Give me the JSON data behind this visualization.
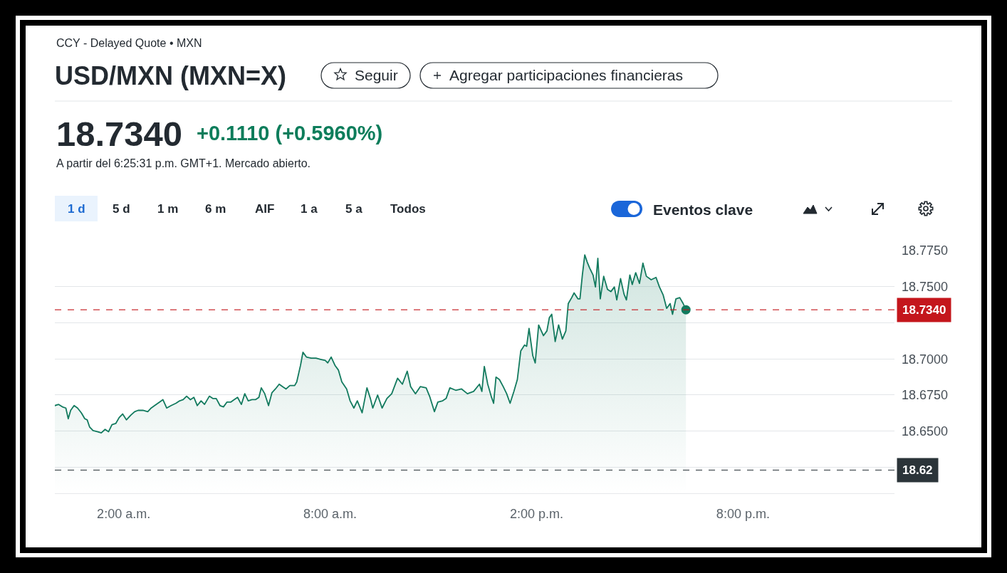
{
  "chart_data": {
    "type": "area",
    "title": "USD/MXN (MXN=X)",
    "subtitle": "CCY - Delayed Quote • MXN",
    "annotations": [
      "18.7340",
      "+0.1110 (+0.5960%)",
      "A partir del 6:25:31 p.m. GMT+1. Mercado abierto.",
      "Seguir",
      "Agregar participaciones financieras",
      "1 d",
      "5 d",
      "1 m",
      "6 m",
      "AIF",
      "1 a",
      "5 a",
      "Todos",
      "Eventos clave"
    ],
    "x": [
      0,
      0.11,
      0.22,
      0.32,
      0.39,
      0.46,
      0.56,
      0.66,
      0.77,
      0.87,
      0.94,
      1.01,
      1.11,
      1.25,
      1.35,
      1.46,
      1.56,
      1.66,
      1.77,
      1.87,
      1.97,
      2.08,
      2.21,
      2.32,
      2.42,
      2.56,
      2.7,
      2.8,
      2.9,
      3.04,
      3.14,
      3.25,
      3.38,
      3.52,
      3.63,
      3.73,
      3.83,
      3.94,
      4.04,
      4.14,
      4.25,
      4.35,
      4.49,
      4.59,
      4.69,
      4.8,
      4.9,
      5.0,
      5.11,
      5.21,
      5.31,
      5.42,
      5.52,
      5.62,
      5.73,
      5.83,
      5.93,
      6.0,
      6.1,
      6.21,
      6.31,
      6.41,
      6.52,
      6.62,
      6.72,
      6.83,
      6.97,
      7.03,
      7.14,
      7.21,
      7.31,
      7.45,
      7.59,
      7.72,
      7.86,
      7.93,
      8.03,
      8.14,
      8.24,
      8.34,
      8.48,
      8.58,
      8.69,
      8.79,
      8.93,
      9.07,
      9.17,
      9.24,
      9.38,
      9.51,
      9.65,
      9.79,
      9.96,
      10.1,
      10.24,
      10.34,
      10.48,
      10.62,
      10.79,
      10.89,
      11.03,
      11.13,
      11.27,
      11.37,
      11.48,
      11.65,
      11.82,
      11.99,
      12.17,
      12.34,
      12.41,
      12.48,
      12.58,
      12.68,
      12.75,
      12.82,
      12.92,
      13.03,
      13.13,
      13.23,
      13.34,
      13.44,
      13.54,
      13.65,
      13.71,
      13.78,
      13.89,
      13.96,
      14.06,
      14.2,
      14.3,
      14.37,
      14.44,
      14.54,
      14.64,
      14.75,
      14.85,
      14.92,
      15.02,
      15.09,
      15.2,
      15.26,
      15.33,
      15.4,
      15.47,
      15.54,
      15.64,
      15.71,
      15.78,
      15.85,
      15.95,
      16.06,
      16.16,
      16.26,
      16.33,
      16.44,
      16.54,
      16.61,
      16.71,
      16.78,
      16.88,
      16.99,
      17.09,
      17.19,
      17.33,
      17.47,
      17.57,
      17.68,
      17.78,
      17.88,
      17.95,
      18.05,
      18.16,
      18.26,
      18.34
    ],
    "series": [
      {
        "color": "#127a5e",
        "values": [
          18.6677,
          18.6685,
          18.6668,
          18.666,
          18.6586,
          18.6644,
          18.6677,
          18.666,
          18.6627,
          18.6586,
          18.6578,
          18.6529,
          18.6504,
          18.6496,
          18.6488,
          18.6512,
          18.6496,
          18.6545,
          18.6553,
          18.6594,
          18.6619,
          18.6578,
          18.6611,
          18.6635,
          18.6644,
          18.6644,
          18.6635,
          18.666,
          18.6677,
          18.6701,
          18.6718,
          18.666,
          18.6677,
          18.6693,
          18.671,
          18.6718,
          18.6742,
          18.6718,
          18.6734,
          18.6677,
          18.671,
          18.6685,
          18.6742,
          18.6726,
          18.6726,
          18.6677,
          18.6668,
          18.6701,
          18.6701,
          18.6718,
          18.6734,
          18.6685,
          18.6759,
          18.671,
          18.6718,
          18.6718,
          18.6734,
          18.68,
          18.6759,
          18.6677,
          18.6767,
          18.6792,
          18.6825,
          18.6808,
          18.6792,
          18.6816,
          18.6816,
          18.6841,
          18.6956,
          18.7046,
          18.7013,
          18.7005,
          18.7005,
          18.6997,
          18.6989,
          18.6972,
          18.7013,
          18.6956,
          18.6923,
          18.6841,
          18.6792,
          18.671,
          18.666,
          18.671,
          18.6627,
          18.68,
          18.6726,
          18.666,
          18.675,
          18.666,
          18.6726,
          18.6759,
          18.6866,
          18.6825,
          18.6915,
          18.6808,
          18.6759,
          18.6808,
          18.68,
          18.6742,
          18.6635,
          18.6701,
          18.671,
          18.6726,
          18.68,
          18.6783,
          18.6792,
          18.6759,
          18.6775,
          18.6825,
          18.6775,
          18.6948,
          18.6825,
          18.6742,
          18.6693,
          18.6874,
          18.6857,
          18.6808,
          18.6759,
          18.6693,
          18.6775,
          18.6857,
          18.7055,
          18.7096,
          18.7087,
          18.7211,
          18.7022,
          18.6972,
          18.7235,
          18.7161,
          18.7194,
          18.7285,
          18.7309,
          18.712,
          18.7235,
          18.7137,
          18.7194,
          18.7383,
          18.7424,
          18.7457,
          18.7416,
          18.7416,
          18.7581,
          18.772,
          18.7671,
          18.763,
          18.7581,
          18.7498,
          18.7696,
          18.7416,
          18.7572,
          18.7482,
          18.7466,
          18.7498,
          18.7408,
          18.7556,
          18.7449,
          18.7408,
          18.7581,
          18.7515,
          18.7597,
          18.7523,
          18.7663,
          18.7572,
          18.7548,
          18.7564,
          18.7498,
          18.7441,
          18.735,
          18.7383,
          18.7309,
          18.7416,
          18.7424,
          18.7383,
          18.734
        ]
      },
      {
        "type": "scatter",
        "x": [
          18.34
        ],
        "color": "#127a5e",
        "values": [
          18.734
        ]
      }
    ],
    "xlim": [
      0,
      24.4
    ],
    "xticks": [
      {
        "value": 2,
        "label": "2:00 a.m."
      },
      {
        "value": 8,
        "label": "8:00 a.m."
      },
      {
        "value": 14,
        "label": "2:00 p.m."
      },
      {
        "value": 20,
        "label": "8:00 p.m."
      }
    ],
    "ylim": [
      18.607,
      18.775
    ],
    "yticks": [
      {
        "value": 18.625,
        "label": null
      },
      {
        "value": 18.65,
        "label": "18.6500"
      },
      {
        "value": 18.675,
        "label": "18.6750"
      },
      {
        "value": 18.7,
        "label": "18.7000"
      },
      {
        "value": 18.725,
        "label": null
      },
      {
        "value": 18.75,
        "label": "18.7500"
      },
      {
        "value": 18.775,
        "label": "18.7750"
      }
    ],
    "grid": "y",
    "ref_lines": [
      {
        "axis": "y",
        "value": 18.734,
        "label": "18.7340",
        "color": "#c4161c",
        "line_style": "dashed"
      },
      {
        "axis": "y",
        "value": 18.623,
        "label": "18.62",
        "color": "#2b3439",
        "line_style": "dashed"
      }
    ]
  }
}
